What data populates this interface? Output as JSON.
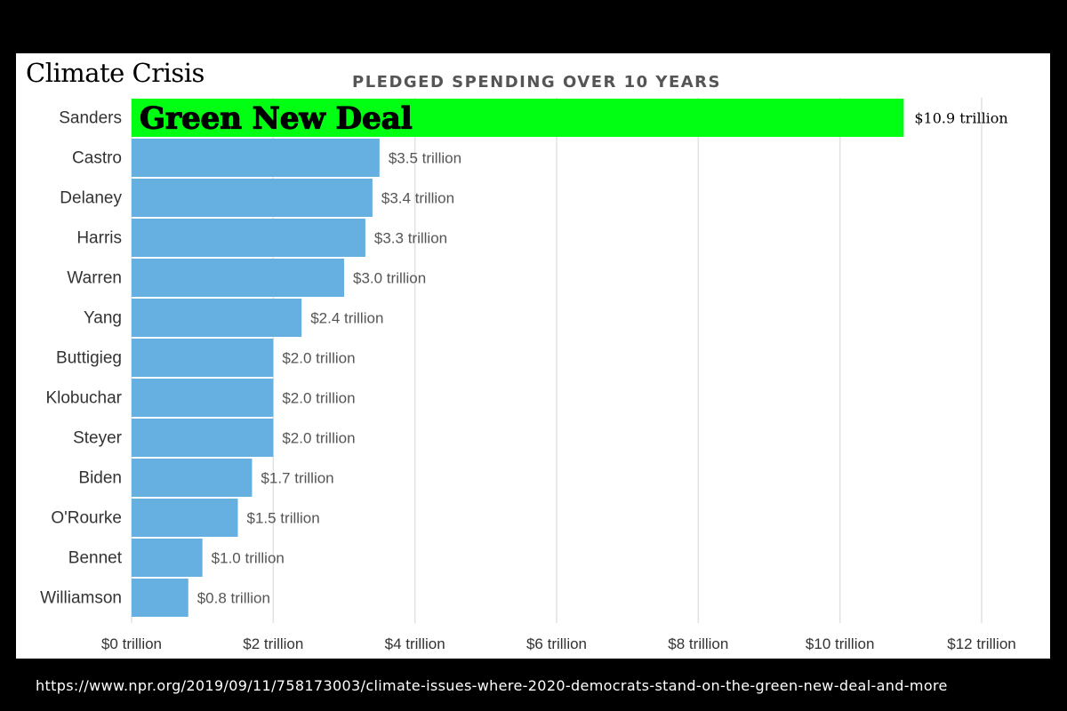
{
  "page_label": "Climate Crisis",
  "source_url": "https://www.npr.org/2019/09/11/758173003/climate-issues-where-2020-democrats-stand-on-the-green-new-deal-and-more",
  "highlight": {
    "label": "Green New Deal",
    "category": "Sanders",
    "color": "#00ff13",
    "value_label_color": "#000000"
  },
  "colors": {
    "bar": "#65b0e1",
    "grid": "#e2e2e2",
    "text": "#333333",
    "value_text": "#555555",
    "title": "#555555"
  },
  "chart_data": {
    "type": "bar",
    "orientation": "horizontal",
    "title": "PLEDGED SPENDING OVER 10 YEARS",
    "xlabel": "",
    "ylabel": "",
    "categories": [
      "Sanders",
      "Castro",
      "Delaney",
      "Harris",
      "Warren",
      "Yang",
      "Buttigieg",
      "Klobuchar",
      "Steyer",
      "Biden",
      "O'Rourke",
      "Bennet",
      "Williamson"
    ],
    "values": [
      10.9,
      3.5,
      3.4,
      3.3,
      3.0,
      2.4,
      2.0,
      2.0,
      2.0,
      1.7,
      1.5,
      1.0,
      0.8
    ],
    "value_labels": [
      "$10.9 trillion",
      "$3.5 trillion",
      "$3.4 trillion",
      "$3.3 trillion",
      "$3.0 trillion",
      "$2.4 trillion",
      "$2.0 trillion",
      "$2.0 trillion",
      "$2.0 trillion",
      "$1.7 trillion",
      "$1.5 trillion",
      "$1.0 trillion",
      "$0.8 trillion"
    ],
    "xlim": [
      0,
      12
    ],
    "xticks": [
      0,
      2,
      4,
      6,
      8,
      10,
      12
    ],
    "xtick_labels": [
      "$0 trillion",
      "$2 trillion",
      "$4 trillion",
      "$6 trillion",
      "$8 trillion",
      "$10 trillion",
      "$12 trillion"
    ],
    "grid": true,
    "legend": "none"
  }
}
